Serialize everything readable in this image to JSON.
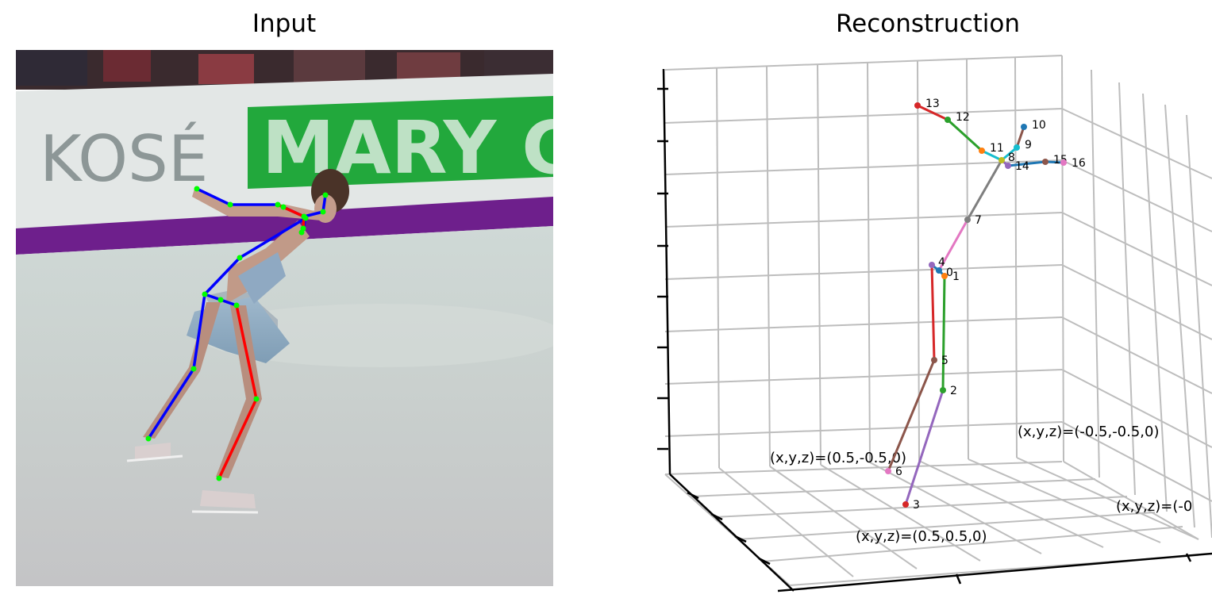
{
  "panels": {
    "input": {
      "title": "Input"
    },
    "reconstruction": {
      "title": "Reconstruction"
    }
  },
  "photo": {
    "banner_text_left": "KOSÉ",
    "banner_text_right": "MARY C"
  },
  "joint_labels": [
    "0",
    "1",
    "2",
    "3",
    "4",
    "5",
    "6",
    "7",
    "8",
    "9",
    "10",
    "11",
    "12",
    "13",
    "14",
    "15",
    "16"
  ],
  "corner_labels": {
    "front_left": "(x,y,z)=(0.5,-0.5,0)",
    "back_right": "(x,y,z)=(-0.5,-0.5,0)",
    "front_right": "(x,y,z)=(0.5,0.5,0)",
    "far_right": "(x,y,z)=(-0"
  },
  "colors": {
    "skeleton_blue": "#0000ff",
    "skeleton_red": "#ff0000",
    "joint_green": "#00ff00",
    "banner_green": "#22a83c",
    "banner_purple": "#6e1f8c"
  }
}
